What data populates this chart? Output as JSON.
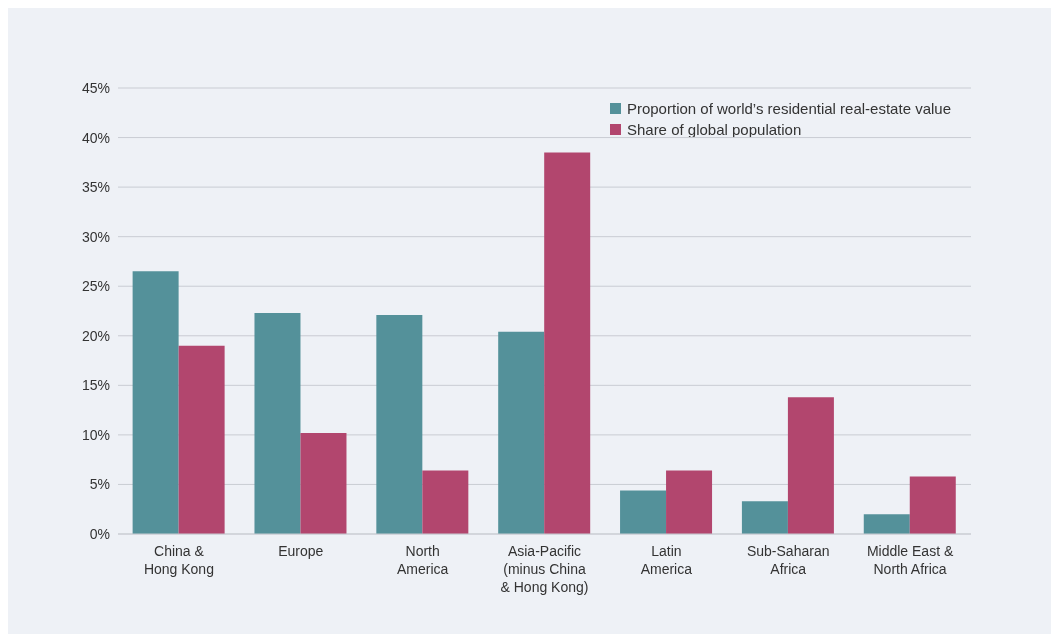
{
  "chart_data": {
    "type": "bar",
    "categories": [
      "China &\nHong Kong",
      "Europe",
      "North\nAmerica",
      "Asia-Pacific\n(minus China\n& Hong Kong)",
      "Latin\nAmerica",
      "Sub-Saharan\nAfrica",
      "Middle East &\nNorth Africa"
    ],
    "series": [
      {
        "name": "Proportion of world’s residential real-estate value",
        "color": "#54919a",
        "values": [
          26.5,
          22.3,
          22.1,
          20.4,
          4.4,
          3.3,
          2.0
        ]
      },
      {
        "name": "Share of global population",
        "color": "#b2466e",
        "values": [
          19.0,
          10.2,
          6.4,
          38.5,
          6.4,
          13.8,
          5.8
        ]
      }
    ],
    "ylim": [
      0,
      45
    ],
    "yticks": [
      {
        "value": 0,
        "label": "0%"
      },
      {
        "value": 5,
        "label": "5%"
      },
      {
        "value": 10,
        "label": "10%"
      },
      {
        "value": 15,
        "label": "15%"
      },
      {
        "value": 20,
        "label": "20%"
      },
      {
        "value": 25,
        "label": "25%"
      },
      {
        "value": 30,
        "label": "30%"
      },
      {
        "value": 35,
        "label": "35%"
      },
      {
        "value": 40,
        "label": "40%"
      },
      {
        "value": 45,
        "label": "45%"
      }
    ],
    "grid": "y",
    "legend": "top right"
  }
}
